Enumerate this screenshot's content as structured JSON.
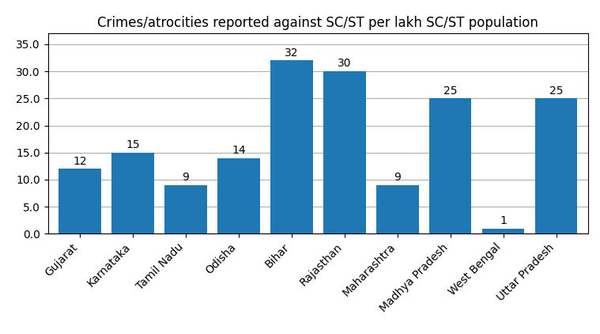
{
  "chart_data": {
    "type": "bar",
    "title": "Crimes/atrocities reported against SC/ST per lakh SC/ST population",
    "categories": [
      "Gujarat",
      "Karnataka",
      "Tamil Nadu",
      "Odisha",
      "Bihar",
      "Rajasthan",
      "Maharashtra",
      "Madhya Pradesh",
      "West Bengal",
      "Uttar Pradesh"
    ],
    "values": [
      12,
      15,
      9,
      14,
      32,
      30,
      9,
      25,
      1,
      25
    ],
    "ylim": [
      0,
      37
    ],
    "yticks": [
      {
        "value": 0,
        "label": "0.0"
      },
      {
        "value": 5,
        "label": "5.0"
      },
      {
        "value": 10,
        "label": "10.0"
      },
      {
        "value": 15,
        "label": "15.0"
      },
      {
        "value": 20,
        "label": "20.0"
      },
      {
        "value": 25,
        "label": "25.0"
      },
      {
        "value": 30,
        "label": "30.0"
      },
      {
        "value": 35,
        "label": "35.0"
      }
    ],
    "grid": true,
    "data_labels": true
  }
}
